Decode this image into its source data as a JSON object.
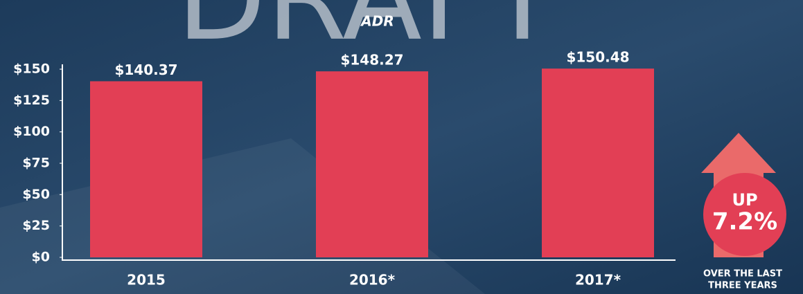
{
  "chart_data": {
    "type": "bar",
    "watermark": "DRAFT",
    "title": "ADR",
    "categories": [
      "2015",
      "2016*",
      "2017*"
    ],
    "values": [
      140.37,
      148.27,
      150.48
    ],
    "value_labels": [
      "$140.37",
      "$148.27",
      "$150.48"
    ],
    "color": "#e23f55",
    "ylim": [
      0,
      150
    ],
    "yticks": [
      {
        "value": 0,
        "label": "$0"
      },
      {
        "value": 25,
        "label": "$25"
      },
      {
        "value": 50,
        "label": "$50"
      },
      {
        "value": 75,
        "label": "$75"
      },
      {
        "value": 100,
        "label": "$100"
      },
      {
        "value": 125,
        "label": "$125"
      },
      {
        "value": 150,
        "label": "$150"
      }
    ],
    "grid": false,
    "annotation": {
      "line1": "UP",
      "line2": "7.2%",
      "caption1": "OVER THE LAST",
      "caption2": "THREE YEARS"
    }
  }
}
